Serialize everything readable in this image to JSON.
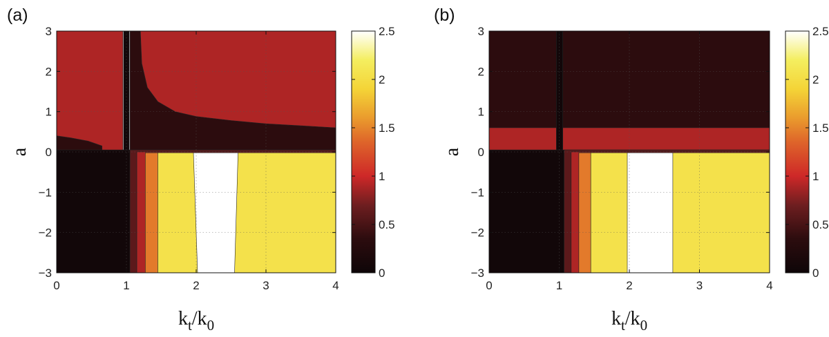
{
  "chart_data": [
    {
      "type": "heatmap",
      "panel_label": "(a)",
      "xlabel": {
        "main": "k",
        "sub1": "t",
        "sep": "/k",
        "sub2": "0"
      },
      "ylabel": "a",
      "xlim": [
        0,
        4
      ],
      "ylim": [
        -3,
        3
      ],
      "x_ticks": [
        "0",
        "1",
        "2",
        "3",
        "4"
      ],
      "y_ticks": [
        "−3",
        "−2",
        "−1",
        "0",
        "1",
        "2",
        "3"
      ],
      "grid": true,
      "colorbar": {
        "range": [
          0,
          2.5
        ],
        "ticks": [
          "0",
          "0.5",
          "1",
          "1.5",
          "2",
          "2.5"
        ],
        "colormap": "hot"
      },
      "regions": [
        {
          "value": 0.05,
          "polygon": [
            [
              0,
              -3
            ],
            [
              1.05,
              -3
            ],
            [
              1.05,
              0.05
            ],
            [
              0,
              0.05
            ]
          ]
        },
        {
          "value": 0.35,
          "polygon": [
            [
              0,
              0.05
            ],
            [
              0,
              0.4
            ],
            [
              0.2,
              0.35
            ],
            [
              0.45,
              0.27
            ],
            [
              0.65,
              0.15
            ],
            [
              0.65,
              0.05
            ]
          ]
        },
        {
          "value": 0.9,
          "polygon": [
            [
              0,
              0.4
            ],
            [
              0,
              3
            ],
            [
              0.95,
              3
            ],
            [
              0.95,
              0.05
            ],
            [
              0.65,
              0.05
            ],
            [
              0.65,
              0.15
            ],
            [
              0.45,
              0.27
            ],
            [
              0.2,
              0.35
            ]
          ]
        },
        {
          "value": 0.05,
          "polygon": [
            [
              0.96,
              3
            ],
            [
              1.04,
              3
            ],
            [
              1.04,
              0.05
            ],
            [
              0.96,
              0.05
            ]
          ]
        },
        {
          "value": 0.35,
          "polygon": [
            [
              1.05,
              0.05
            ],
            [
              1.05,
              3
            ],
            [
              1.2,
              3
            ],
            [
              1.22,
              2.2
            ],
            [
              1.3,
              1.6
            ],
            [
              1.45,
              1.25
            ],
            [
              1.7,
              1.0
            ],
            [
              2.0,
              0.88
            ],
            [
              2.5,
              0.78
            ],
            [
              3.0,
              0.7
            ],
            [
              3.5,
              0.65
            ],
            [
              4,
              0.6
            ],
            [
              4,
              0.05
            ]
          ]
        },
        {
          "value": 0.9,
          "polygon": [
            [
              1.2,
              3
            ],
            [
              4,
              3
            ],
            [
              4,
              0.6
            ],
            [
              3.5,
              0.65
            ],
            [
              3.0,
              0.7
            ],
            [
              2.5,
              0.78
            ],
            [
              2.0,
              0.88
            ],
            [
              1.7,
              1.0
            ],
            [
              1.45,
              1.25
            ],
            [
              1.3,
              1.6
            ],
            [
              1.22,
              2.2
            ]
          ]
        },
        {
          "value": 0.6,
          "polygon": [
            [
              1.05,
              -3
            ],
            [
              1.05,
              0.05
            ],
            [
              4,
              0.05
            ],
            [
              4,
              0
            ],
            [
              1.15,
              0
            ],
            [
              1.15,
              -3
            ]
          ]
        },
        {
          "value": 0.9,
          "polygon": [
            [
              1.15,
              -3
            ],
            [
              1.15,
              0
            ],
            [
              4,
              0
            ],
            [
              4,
              -0.02
            ],
            [
              1.27,
              -0.02
            ],
            [
              1.27,
              -3
            ]
          ]
        },
        {
          "value": 1.45,
          "polygon": [
            [
              1.27,
              -3
            ],
            [
              1.27,
              -0.02
            ],
            [
              1.45,
              -0.02
            ],
            [
              1.45,
              -3
            ]
          ]
        },
        {
          "value": 2.05,
          "polygon": [
            [
              1.45,
              -3
            ],
            [
              1.45,
              -0.02
            ],
            [
              4,
              -0.02
            ],
            [
              4,
              -3
            ]
          ]
        },
        {
          "value": 2.5,
          "polygon": [
            [
              1.96,
              -0.02
            ],
            [
              2.6,
              -0.02
            ],
            [
              2.55,
              -3
            ],
            [
              2.02,
              -3
            ]
          ]
        }
      ]
    },
    {
      "type": "heatmap",
      "panel_label": "(b)",
      "xlabel": {
        "main": "k",
        "sub1": "t",
        "sep": "/k",
        "sub2": "0"
      },
      "ylabel": "a",
      "xlim": [
        0,
        4
      ],
      "ylim": [
        -3,
        3
      ],
      "x_ticks": [
        "0",
        "1",
        "2",
        "3",
        "4"
      ],
      "y_ticks": [
        "−3",
        "−2",
        "−1",
        "0",
        "1",
        "2",
        "3"
      ],
      "grid": true,
      "colorbar": {
        "range": [
          0,
          2.5
        ],
        "ticks": [
          "0",
          "0.5",
          "1",
          "1.5",
          "2",
          "2.5"
        ],
        "colormap": "hot"
      },
      "regions": [
        {
          "value": 0.05,
          "polygon": [
            [
              0,
              -3
            ],
            [
              1.07,
              -3
            ],
            [
              1.07,
              0.05
            ],
            [
              0,
              0.05
            ]
          ]
        },
        {
          "value": 0.35,
          "polygon": [
            [
              0,
              0.6
            ],
            [
              0,
              3
            ],
            [
              0.96,
              3
            ],
            [
              0.96,
              0.6
            ]
          ]
        },
        {
          "value": 0.35,
          "polygon": [
            [
              1.05,
              0.6
            ],
            [
              1.05,
              3
            ],
            [
              4,
              3
            ],
            [
              4,
              0.6
            ]
          ]
        },
        {
          "value": 0.9,
          "polygon": [
            [
              0,
              0.05
            ],
            [
              0,
              0.6
            ],
            [
              0.96,
              0.6
            ],
            [
              0.96,
              0.05
            ]
          ]
        },
        {
          "value": 0.9,
          "polygon": [
            [
              1.05,
              0.05
            ],
            [
              1.05,
              0.6
            ],
            [
              4,
              0.6
            ],
            [
              4,
              0.05
            ]
          ]
        },
        {
          "value": 0.05,
          "polygon": [
            [
              0.96,
              3
            ],
            [
              1.05,
              3
            ],
            [
              1.05,
              0.05
            ],
            [
              0.96,
              0.05
            ]
          ]
        },
        {
          "value": 0.6,
          "polygon": [
            [
              1.07,
              -3
            ],
            [
              1.07,
              0.05
            ],
            [
              4,
              0.05
            ],
            [
              4,
              0
            ],
            [
              1.17,
              0
            ],
            [
              1.17,
              -3
            ]
          ]
        },
        {
          "value": 0.9,
          "polygon": [
            [
              1.17,
              -3
            ],
            [
              1.17,
              0
            ],
            [
              4,
              0
            ],
            [
              4,
              -0.02
            ],
            [
              1.28,
              -0.02
            ],
            [
              1.28,
              -3
            ]
          ]
        },
        {
          "value": 1.45,
          "polygon": [
            [
              1.28,
              -3
            ],
            [
              1.28,
              -0.02
            ],
            [
              1.45,
              -0.02
            ],
            [
              1.45,
              -3
            ]
          ]
        },
        {
          "value": 2.05,
          "polygon": [
            [
              1.45,
              -3
            ],
            [
              1.45,
              -0.02
            ],
            [
              4,
              -0.02
            ],
            [
              4,
              -3
            ]
          ]
        },
        {
          "value": 2.5,
          "polygon": [
            [
              1.97,
              -0.02
            ],
            [
              2.62,
              -0.02
            ],
            [
              2.62,
              -3
            ],
            [
              1.97,
              -3
            ]
          ]
        }
      ]
    }
  ]
}
